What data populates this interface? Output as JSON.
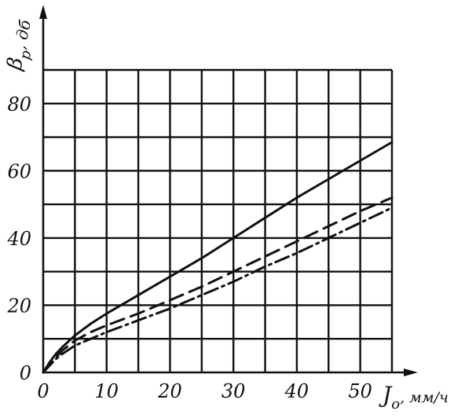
{
  "chart_data": {
    "type": "line",
    "x_axis": {
      "label_main": "J",
      "label_sub": "o",
      "label_unit": ", мм/ч",
      "ticks": [
        "0",
        "10",
        "20",
        "30",
        "40",
        "50"
      ],
      "range": [
        0,
        55
      ]
    },
    "y_axis": {
      "label_main": "β",
      "label_sub": "p",
      "label_unit": ", дб",
      "ticks": [
        "0",
        "20",
        "40",
        "60",
        "80"
      ],
      "range": [
        0,
        90
      ]
    },
    "grid": true,
    "series": [
      {
        "style": "solid",
        "x": [
          0,
          1,
          2,
          3,
          5,
          7.5,
          10,
          15,
          20,
          25,
          30,
          35,
          40,
          45,
          50,
          55
        ],
        "y": [
          0,
          3,
          5.5,
          7.5,
          11,
          14.5,
          17.5,
          23,
          28.5,
          34,
          40,
          46,
          52,
          57.5,
          63,
          68.5
        ]
      },
      {
        "style": "dashed",
        "x": [
          0,
          1,
          2,
          3,
          5,
          7.5,
          10,
          15,
          20,
          25,
          30,
          35,
          40,
          45,
          50,
          55
        ],
        "y": [
          0,
          2.5,
          4.5,
          6.5,
          9.5,
          12,
          14,
          17.5,
          21.5,
          25.5,
          30,
          34.5,
          39,
          43.5,
          48,
          52
        ]
      },
      {
        "style": "dash-dot",
        "x": [
          0,
          1,
          2,
          3,
          5,
          7.5,
          10,
          15,
          20,
          25,
          30,
          35,
          40,
          45,
          50,
          55
        ],
        "y": [
          0,
          2,
          4,
          5.5,
          8,
          10,
          12,
          15.5,
          19,
          23,
          27,
          31.5,
          35.5,
          40,
          44.5,
          49
        ]
      }
    ]
  }
}
